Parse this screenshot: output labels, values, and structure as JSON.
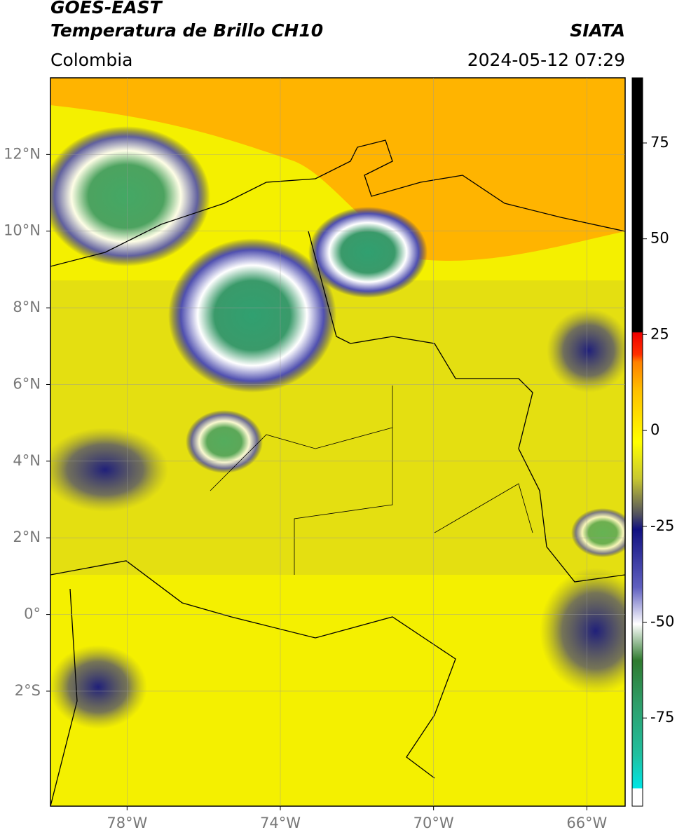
{
  "header": {
    "satellite": "GOES-EAST",
    "product": "Temperatura de Brillo CH10",
    "region": "Colombia",
    "source": "SIATA",
    "datetime": "2024-05-12 07:29"
  },
  "map": {
    "lon_range": [
      -80,
      -65
    ],
    "lat_range": [
      -5,
      14
    ],
    "lon_ticks": [
      {
        "value": -78,
        "label": "78°W"
      },
      {
        "value": -74,
        "label": "74°W"
      },
      {
        "value": -70,
        "label": "70°W"
      },
      {
        "value": -66,
        "label": "66°W"
      }
    ],
    "lat_ticks": [
      {
        "value": 12,
        "label": "12°N"
      },
      {
        "value": 10,
        "label": "10°N"
      },
      {
        "value": 8,
        "label": "8°N"
      },
      {
        "value": 6,
        "label": "6°N"
      },
      {
        "value": 4,
        "label": "4°N"
      },
      {
        "value": 2,
        "label": "2°N"
      },
      {
        "value": 0,
        "label": "0°"
      },
      {
        "value": -2,
        "label": "2°S"
      }
    ]
  },
  "colorbar": {
    "range": [
      -98,
      92
    ],
    "ticks": [
      75,
      50,
      25,
      0,
      -25,
      -50,
      -75
    ]
  }
}
